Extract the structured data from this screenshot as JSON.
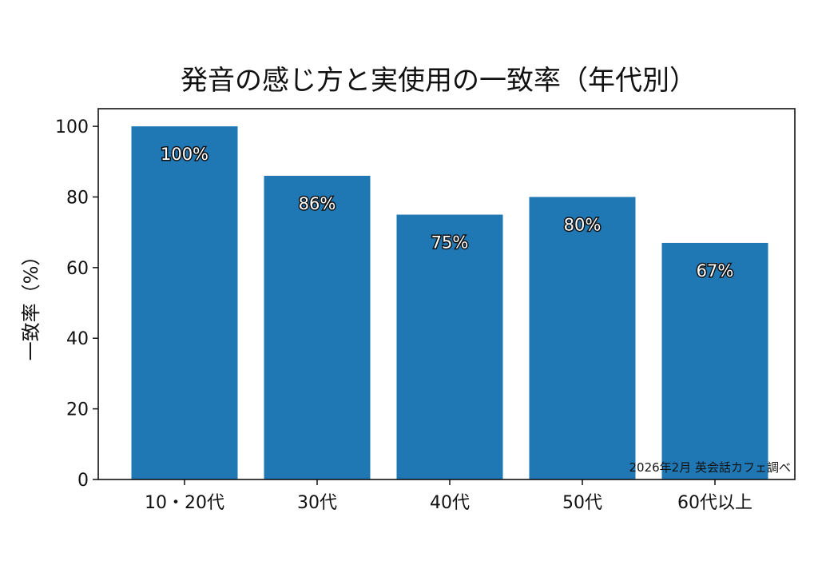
{
  "chart_data": {
    "type": "bar",
    "title": "発音の感じ方と実使用の一致率（年代別）",
    "xlabel": "",
    "ylabel": "一致率（%）",
    "categories": [
      "10・20代",
      "30代",
      "40代",
      "50代",
      "60代以上"
    ],
    "values": [
      100,
      86,
      75,
      80,
      67
    ],
    "data_labels": [
      "100%",
      "86%",
      "75%",
      "80%",
      "67%"
    ],
    "ylim": [
      0,
      105
    ],
    "yticks": [
      0,
      20,
      40,
      60,
      80,
      100
    ],
    "grid": false,
    "legend": "none",
    "annotation": "2026年2月 英会話カフェ調べ",
    "bar_color": "#1f77b4"
  }
}
